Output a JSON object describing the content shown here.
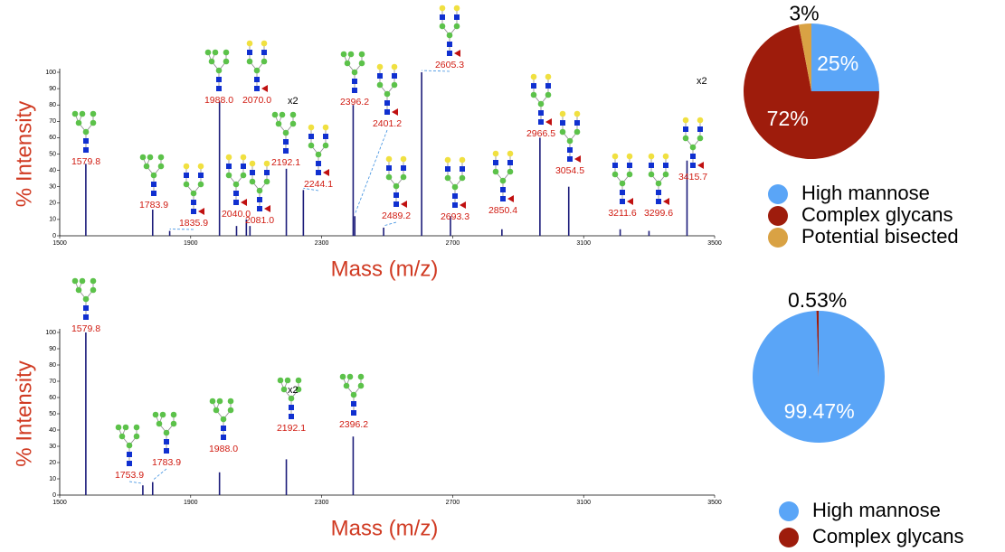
{
  "chart_data": [
    {
      "type": "spectrum",
      "x": [
        1579.8,
        1783.9,
        1835.9,
        1988.0,
        2040.0,
        2070.0,
        2081.0,
        2192.1,
        2244.1,
        2396.2,
        2401.2,
        2489.2,
        2605.3,
        2693.3,
        2850.4,
        2966.5,
        3054.5,
        3211.6,
        3299.6,
        3415.7
      ],
      "x_labels": [
        "1579.8",
        "1783.9",
        "1835.9",
        "1988.0",
        "2040.0",
        "2070.0",
        "2081.0",
        "2192.1",
        "2244.1",
        "2396.2",
        "2401.2",
        "2489.2",
        "2605.3",
        "2693.3",
        "2850.4",
        "2966.5",
        "3054.5",
        "3211.6",
        "3299.6",
        "3415.7"
      ],
      "values": [
        44,
        16,
        3,
        82,
        6,
        10,
        6,
        41,
        28,
        80,
        12,
        5,
        100,
        12,
        4,
        60,
        30,
        4,
        3,
        46
      ],
      "color": "#1c1c7a",
      "xlim": [
        1500,
        3500
      ],
      "xticks": [
        1500,
        1900,
        2300,
        2700,
        3100,
        3500
      ],
      "ylim": [
        0,
        100
      ],
      "yticks": [
        0,
        10,
        20,
        30,
        40,
        50,
        60,
        70,
        80,
        90,
        100
      ],
      "x_label": "Mass (m/z)",
      "y_label": "% Intensity",
      "annotations": [
        "x2",
        "x2"
      ]
    },
    {
      "type": "pie",
      "categories": [
        "High mannose",
        "Complex glycans",
        "Potential bisected"
      ],
      "values": [
        25,
        72,
        3
      ],
      "value_labels": [
        "25%",
        "72%",
        "3%"
      ],
      "colors": [
        "#5aa5f7",
        "#9e1c0c",
        "#d9a244"
      ]
    },
    {
      "type": "spectrum",
      "x": [
        1579.8,
        1753.9,
        1783.9,
        1988.0,
        2192.1,
        2396.2
      ],
      "x_labels": [
        "1579.8",
        "1753.9",
        "1783.9",
        "1988.0",
        "2192.1",
        "2396.2"
      ],
      "values": [
        100,
        6,
        8,
        14,
        22,
        36
      ],
      "color": "#1c1c7a",
      "xlim": [
        1500,
        3500
      ],
      "xticks": [
        1500,
        1900,
        2300,
        2700,
        3100,
        3500
      ],
      "ylim": [
        0,
        100
      ],
      "yticks": [
        0,
        10,
        20,
        30,
        40,
        50,
        60,
        70,
        80,
        90,
        100
      ],
      "x_label": "Mass (m/z)",
      "y_label": "% Intensity",
      "annotations": [
        "x2"
      ]
    },
    {
      "type": "pie",
      "categories": [
        "High mannose",
        "Complex glycans"
      ],
      "values": [
        99.47,
        0.53
      ],
      "value_labels": [
        "99.47%",
        "0.53%"
      ],
      "colors": [
        "#5aa5f7",
        "#9e1c0c"
      ]
    }
  ]
}
